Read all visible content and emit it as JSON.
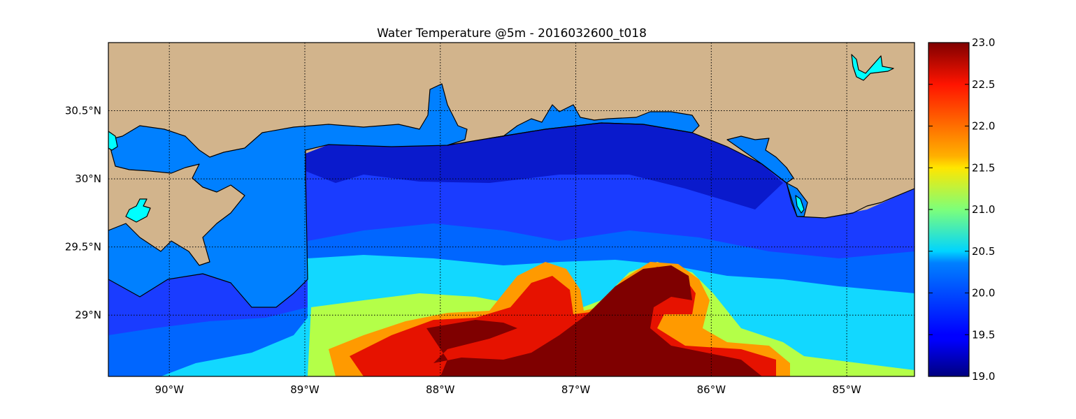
{
  "title": "Water Temperature @5m - 2016032600_t018",
  "colors": {
    "land": "#d2b48c",
    "inland_water": "#0080ff",
    "lake": "#00ffff",
    "colormap": "jet"
  },
  "map": {
    "lon_range": [
      -90.45,
      -84.5
    ],
    "lat_range": [
      28.55,
      31.0
    ],
    "lon_ticks": [
      {
        "value": -90,
        "label": "90°W"
      },
      {
        "value": -89,
        "label": "89°W"
      },
      {
        "value": -88,
        "label": "88°W"
      },
      {
        "value": -87,
        "label": "87°W"
      },
      {
        "value": -86,
        "label": "86°W"
      },
      {
        "value": -85,
        "label": "85°W"
      }
    ],
    "lat_ticks": [
      {
        "value": 30.5,
        "label": "30.5°N"
      },
      {
        "value": 30.0,
        "label": "30°N"
      },
      {
        "value": 29.5,
        "label": "29.5°N"
      },
      {
        "value": 29.0,
        "label": "29°N"
      }
    ],
    "grid": true
  },
  "colorbar": {
    "min": 19.0,
    "max": 23.0,
    "ticks": [
      "23.0",
      "22.5",
      "22.0",
      "21.5",
      "21.0",
      "20.5",
      "20.0",
      "19.5",
      "19.0"
    ]
  }
}
